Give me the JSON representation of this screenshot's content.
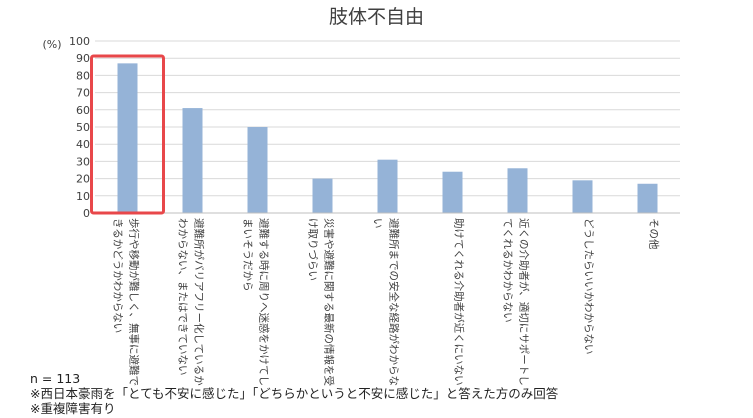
{
  "chart_data": {
    "type": "bar",
    "title": "肢体不自由",
    "ylabel": "(%)",
    "ylim": [
      0,
      100
    ],
    "yticks": [
      0,
      10,
      20,
      30,
      40,
      50,
      60,
      70,
      80,
      90,
      100
    ],
    "grid": true,
    "categories": [
      [
        "歩行や移動が難しく、無事に避難で",
        "きるかどうかわからない"
      ],
      [
        "避難所がバリアフリー化しているか",
        "わからない、またはできていない"
      ],
      [
        "避難する時に周りへ迷惑をかけてし",
        "まいそうだから"
      ],
      [
        "災害や避難に関する最新の情報を受",
        "け取りづらい"
      ],
      [
        "避難所までの安全な経路がわからな",
        "い"
      ],
      [
        "助けてくれる介助者が近くにいない"
      ],
      [
        "近くの介助者が、適切にサポートし",
        "てくれるかわからない"
      ],
      [
        "どうしたらいいかわからない"
      ],
      [
        "その他"
      ]
    ],
    "values": [
      87,
      61,
      50,
      20,
      31,
      24,
      26,
      19,
      17
    ],
    "bar_color": "#95b3d7",
    "highlight_index": 0,
    "highlight_color": "#e8474a"
  },
  "notes": {
    "n": "n = 113",
    "note1": "※西日本豪雨を「とても不安に感じた」「どちらかというと不安に感じた」と答えた方のみ回答",
    "note2": "※重複障害有り"
  }
}
